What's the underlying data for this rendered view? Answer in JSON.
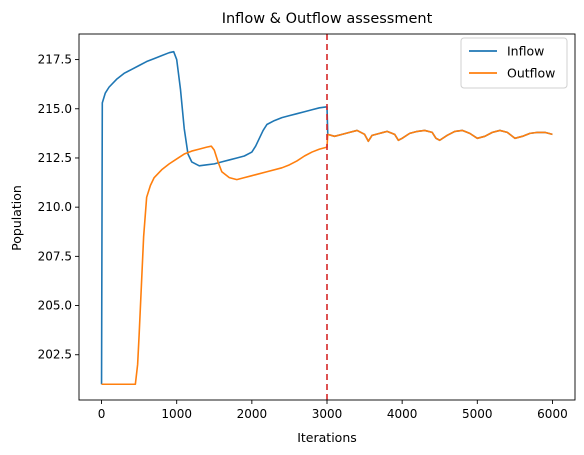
{
  "chart_data": {
    "type": "line",
    "title": "Inflow & Outflow assessment",
    "xlabel": "Iterations",
    "ylabel": "Population",
    "xlim": [
      -300,
      6300
    ],
    "ylim": [
      200.2,
      218.8
    ],
    "xticks": [
      0,
      1000,
      2000,
      3000,
      4000,
      5000,
      6000
    ],
    "xtick_labels": [
      "0",
      "1000",
      "2000",
      "3000",
      "4000",
      "5000",
      "6000"
    ],
    "yticks": [
      202.5,
      205.0,
      207.5,
      210.0,
      212.5,
      215.0,
      217.5
    ],
    "ytick_labels": [
      "202.5",
      "205.0",
      "207.5",
      "210.0",
      "212.5",
      "215.0",
      "217.5"
    ],
    "grid": false,
    "legend_position": "top-right",
    "vline": {
      "x": 3000,
      "color": "#d62728",
      "style": "dashed"
    },
    "series": [
      {
        "name": "Inflow",
        "color": "#1f77b4",
        "points": [
          [
            0,
            201.0
          ],
          [
            10,
            215.3
          ],
          [
            50,
            215.8
          ],
          [
            100,
            216.1
          ],
          [
            200,
            216.5
          ],
          [
            300,
            216.8
          ],
          [
            400,
            217.0
          ],
          [
            500,
            217.2
          ],
          [
            600,
            217.4
          ],
          [
            700,
            217.55
          ],
          [
            800,
            217.7
          ],
          [
            900,
            217.85
          ],
          [
            960,
            217.9
          ],
          [
            1000,
            217.5
          ],
          [
            1050,
            216.0
          ],
          [
            1100,
            214.0
          ],
          [
            1150,
            212.7
          ],
          [
            1200,
            212.3
          ],
          [
            1300,
            212.1
          ],
          [
            1400,
            212.15
          ],
          [
            1500,
            212.2
          ],
          [
            1600,
            212.3
          ],
          [
            1700,
            212.4
          ],
          [
            1800,
            212.5
          ],
          [
            1900,
            212.6
          ],
          [
            2000,
            212.8
          ],
          [
            2050,
            213.1
          ],
          [
            2100,
            213.5
          ],
          [
            2150,
            213.9
          ],
          [
            2200,
            214.2
          ],
          [
            2300,
            214.4
          ],
          [
            2400,
            214.55
          ],
          [
            2500,
            214.65
          ],
          [
            2600,
            214.75
          ],
          [
            2700,
            214.85
          ],
          [
            2800,
            214.95
          ],
          [
            2900,
            215.05
          ],
          [
            3000,
            215.1
          ],
          [
            3010,
            213.7
          ],
          [
            3100,
            213.6
          ],
          [
            3200,
            213.7
          ],
          [
            3300,
            213.8
          ],
          [
            3400,
            213.9
          ],
          [
            3500,
            213.7
          ],
          [
            3550,
            213.35
          ],
          [
            3600,
            213.65
          ],
          [
            3700,
            213.75
          ],
          [
            3800,
            213.85
          ],
          [
            3900,
            213.7
          ],
          [
            3950,
            213.4
          ],
          [
            4000,
            213.5
          ],
          [
            4100,
            213.75
          ],
          [
            4200,
            213.85
          ],
          [
            4300,
            213.9
          ],
          [
            4400,
            213.8
          ],
          [
            4450,
            213.5
          ],
          [
            4500,
            213.4
          ],
          [
            4600,
            213.65
          ],
          [
            4700,
            213.85
          ],
          [
            4800,
            213.9
          ],
          [
            4900,
            213.75
          ],
          [
            5000,
            213.5
          ],
          [
            5100,
            213.6
          ],
          [
            5200,
            213.8
          ],
          [
            5300,
            213.9
          ],
          [
            5400,
            213.8
          ],
          [
            5500,
            213.5
          ],
          [
            5600,
            213.6
          ],
          [
            5700,
            213.75
          ],
          [
            5800,
            213.8
          ],
          [
            5900,
            213.8
          ],
          [
            6000,
            213.7
          ]
        ]
      },
      {
        "name": "Outflow",
        "color": "#ff7f0e",
        "points": [
          [
            0,
            201.0
          ],
          [
            200,
            201.0
          ],
          [
            400,
            201.0
          ],
          [
            450,
            201.0
          ],
          [
            480,
            202.0
          ],
          [
            500,
            203.5
          ],
          [
            530,
            206.0
          ],
          [
            560,
            208.5
          ],
          [
            600,
            210.5
          ],
          [
            650,
            211.1
          ],
          [
            700,
            211.5
          ],
          [
            800,
            211.9
          ],
          [
            900,
            212.2
          ],
          [
            1000,
            212.45
          ],
          [
            1100,
            212.7
          ],
          [
            1200,
            212.85
          ],
          [
            1300,
            212.95
          ],
          [
            1400,
            213.05
          ],
          [
            1460,
            213.1
          ],
          [
            1500,
            212.9
          ],
          [
            1550,
            212.3
          ],
          [
            1600,
            211.8
          ],
          [
            1700,
            211.5
          ],
          [
            1800,
            211.4
          ],
          [
            1900,
            211.5
          ],
          [
            2000,
            211.6
          ],
          [
            2200,
            211.8
          ],
          [
            2400,
            212.0
          ],
          [
            2500,
            212.15
          ],
          [
            2600,
            212.35
          ],
          [
            2700,
            212.6
          ],
          [
            2800,
            212.8
          ],
          [
            2900,
            212.95
          ],
          [
            3000,
            213.05
          ],
          [
            3010,
            213.7
          ],
          [
            3100,
            213.6
          ],
          [
            3200,
            213.7
          ],
          [
            3300,
            213.8
          ],
          [
            3400,
            213.9
          ],
          [
            3500,
            213.7
          ],
          [
            3550,
            213.35
          ],
          [
            3600,
            213.65
          ],
          [
            3700,
            213.75
          ],
          [
            3800,
            213.85
          ],
          [
            3900,
            213.7
          ],
          [
            3950,
            213.4
          ],
          [
            4000,
            213.5
          ],
          [
            4100,
            213.75
          ],
          [
            4200,
            213.85
          ],
          [
            4300,
            213.9
          ],
          [
            4400,
            213.8
          ],
          [
            4450,
            213.5
          ],
          [
            4500,
            213.4
          ],
          [
            4600,
            213.65
          ],
          [
            4700,
            213.85
          ],
          [
            4800,
            213.9
          ],
          [
            4900,
            213.75
          ],
          [
            5000,
            213.5
          ],
          [
            5100,
            213.6
          ],
          [
            5200,
            213.8
          ],
          [
            5300,
            213.9
          ],
          [
            5400,
            213.8
          ],
          [
            5500,
            213.5
          ],
          [
            5600,
            213.6
          ],
          [
            5700,
            213.75
          ],
          [
            5800,
            213.8
          ],
          [
            5900,
            213.8
          ],
          [
            6000,
            213.7
          ]
        ]
      }
    ]
  }
}
